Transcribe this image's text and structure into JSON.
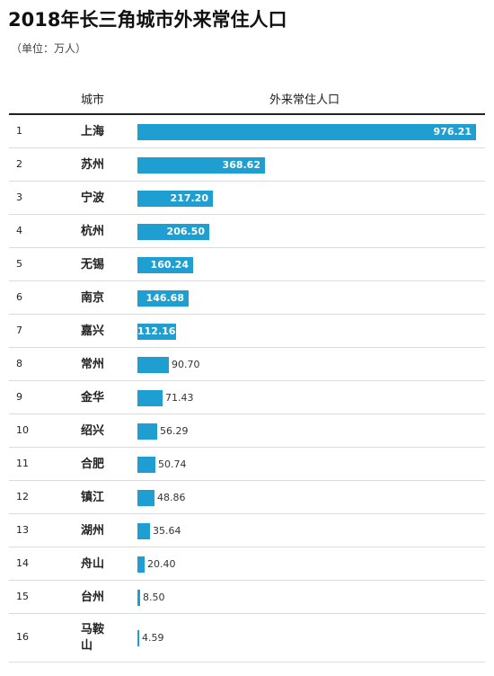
{
  "title": "2018年长三角城市外来常住人口",
  "subtitle": "（单位：万人）",
  "headers": {
    "city": "城市",
    "value": "外来常住人口"
  },
  "colors": {
    "bar": "#1f9ed1",
    "label_inside": "#ffffff",
    "label_outside": "#333333"
  },
  "chart_data": {
    "type": "bar",
    "orientation": "horizontal",
    "title": "2018年长三角城市外来常住人口",
    "subtitle": "（单位：万人）",
    "xlabel": "外来常住人口",
    "ylabel": "城市",
    "ranks": [
      "1",
      "2",
      "3",
      "4",
      "5",
      "6",
      "7",
      "8",
      "9",
      "10",
      "11",
      "12",
      "13",
      "14",
      "15",
      "16"
    ],
    "categories": [
      "上海",
      "苏州",
      "宁波",
      "杭州",
      "无锡",
      "南京",
      "嘉兴",
      "常州",
      "金华",
      "绍兴",
      "合肥",
      "镇江",
      "湖州",
      "舟山",
      "台州",
      "马鞍山"
    ],
    "values": [
      976.21,
      368.62,
      217.2,
      206.5,
      160.24,
      146.68,
      112.16,
      90.7,
      71.43,
      56.29,
      50.74,
      48.86,
      35.64,
      20.4,
      8.5,
      4.59
    ],
    "value_labels": [
      "976.21",
      "368.62",
      "217.20",
      "206.50",
      "160.24",
      "146.68",
      "112.16",
      "90.70",
      "71.43",
      "56.29",
      "50.74",
      "48.86",
      "35.64",
      "20.40",
      "8.50",
      "4.59"
    ],
    "xlim": [
      0,
      976.21
    ],
    "grid": false,
    "legend": "none"
  }
}
